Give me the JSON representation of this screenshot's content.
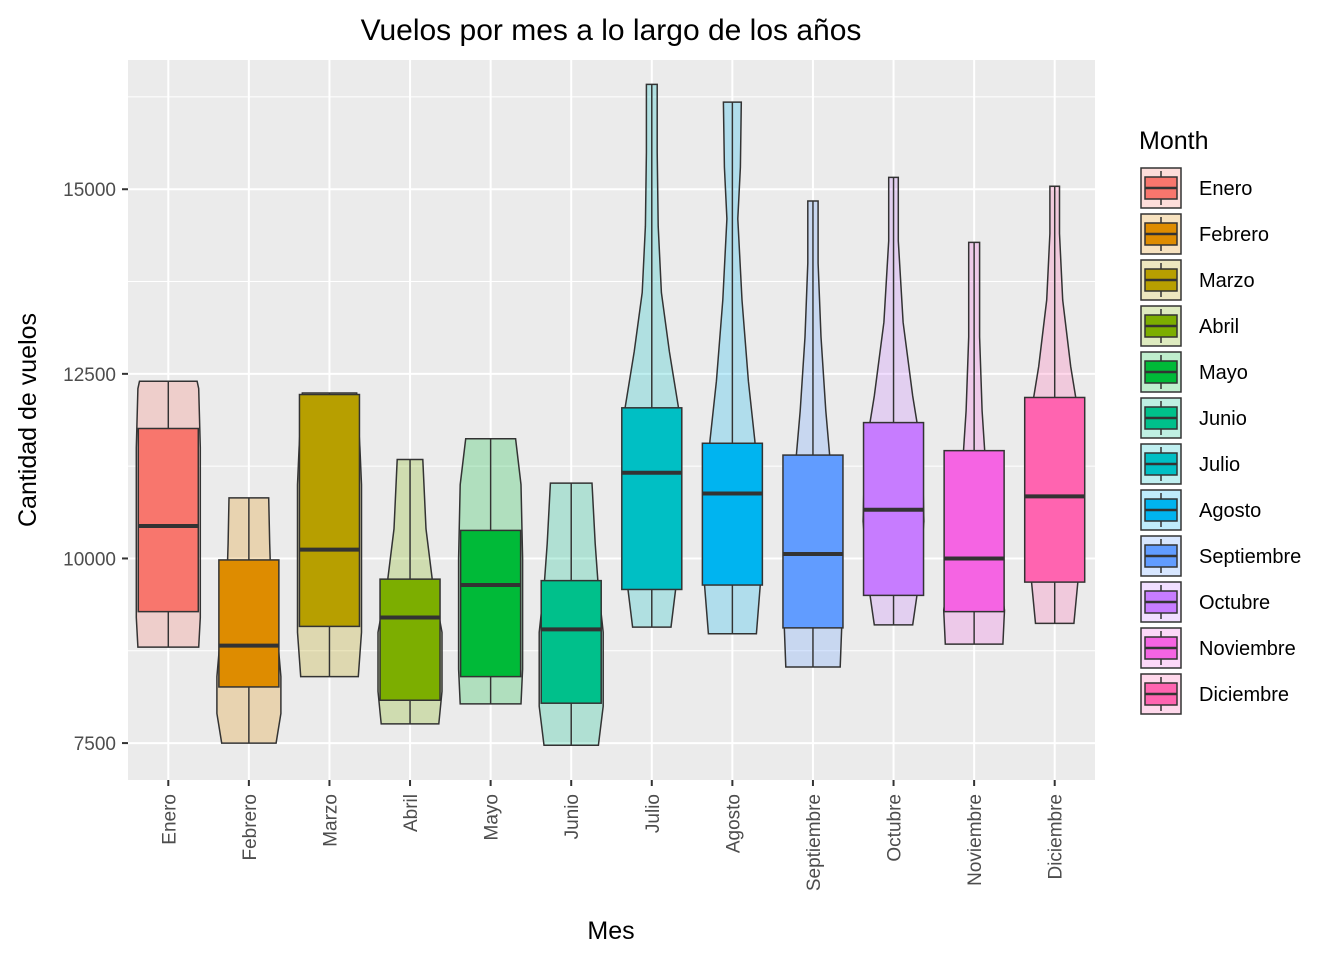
{
  "chart_data": {
    "type": "violin+boxplot",
    "title": "Vuelos por mes a lo largo de los años",
    "xlabel": "Mes",
    "ylabel": "Cantidad de vuelos",
    "ylim": [
      7000,
      16750
    ],
    "yticks": [
      7500,
      10000,
      12500,
      15000
    ],
    "grid": true,
    "legend": {
      "title": "Month",
      "position": "right"
    },
    "categories": [
      "Enero",
      "Febrero",
      "Marzo",
      "Abril",
      "Mayo",
      "Junio",
      "Julio",
      "Agosto",
      "Septiembre",
      "Octubre",
      "Noviembre",
      "Diciembre"
    ],
    "colors": [
      "#F8766D",
      "#DE8C00",
      "#B79F00",
      "#7CAE00",
      "#00BA38",
      "#00C08B",
      "#00BFC4",
      "#00B4F0",
      "#619CFF",
      "#C77CFF",
      "#F564E3",
      "#FF64B0"
    ],
    "box": [
      {
        "min": 8800,
        "q1": 9280,
        "median": 10440,
        "q3": 11760,
        "max": 12400
      },
      {
        "min": 7500,
        "q1": 8260,
        "median": 8820,
        "q3": 9980,
        "max": 10820
      },
      {
        "min": 8400,
        "q1": 9080,
        "median": 10120,
        "q3": 12220,
        "max": 12240
      },
      {
        "min": 7760,
        "q1": 8080,
        "median": 9200,
        "q3": 9720,
        "max": 11340
      },
      {
        "min": 8030,
        "q1": 8400,
        "median": 9640,
        "q3": 10380,
        "max": 11620
      },
      {
        "min": 7470,
        "q1": 8040,
        "median": 9040,
        "q3": 9700,
        "max": 11020
      },
      {
        "min": 9070,
        "q1": 9580,
        "median": 11160,
        "q3": 12040,
        "max": 16420
      },
      {
        "min": 8980,
        "q1": 9640,
        "median": 10880,
        "q3": 11560,
        "max": 16180
      },
      {
        "min": 8530,
        "q1": 9060,
        "median": 10060,
        "q3": 11400,
        "max": 14840
      },
      {
        "min": 9100,
        "q1": 9500,
        "median": 10660,
        "q3": 11840,
        "max": 15160
      },
      {
        "min": 8840,
        "q1": 9280,
        "median": 10000,
        "q3": 11460,
        "max": 14280
      },
      {
        "min": 9120,
        "q1": 9680,
        "median": 10840,
        "q3": 12180,
        "max": 15040
      }
    ],
    "violin_half_width": [
      [
        [
          8800,
          0.95
        ],
        [
          9200,
          1.0
        ],
        [
          10000,
          1.0
        ],
        [
          11500,
          1.0
        ],
        [
          12300,
          0.95
        ],
        [
          12400,
          0.9
        ]
      ],
      [
        [
          7500,
          0.85
        ],
        [
          7900,
          1.0
        ],
        [
          8400,
          1.0
        ],
        [
          8900,
          0.9
        ],
        [
          9500,
          0.7
        ],
        [
          10200,
          0.65
        ],
        [
          10820,
          0.62
        ]
      ],
      [
        [
          8400,
          0.9
        ],
        [
          9000,
          1.0
        ],
        [
          11000,
          1.0
        ],
        [
          11500,
          0.95
        ],
        [
          12240,
          0.85
        ]
      ],
      [
        [
          7760,
          0.9
        ],
        [
          8200,
          1.0
        ],
        [
          9000,
          1.0
        ],
        [
          9700,
          0.7
        ],
        [
          10400,
          0.5
        ],
        [
          11340,
          0.4
        ]
      ],
      [
        [
          8030,
          0.95
        ],
        [
          8500,
          1.0
        ],
        [
          10000,
          1.0
        ],
        [
          11000,
          0.95
        ],
        [
          11620,
          0.78
        ]
      ],
      [
        [
          7470,
          0.85
        ],
        [
          8000,
          1.0
        ],
        [
          9000,
          1.0
        ],
        [
          9600,
          0.85
        ],
        [
          10200,
          0.75
        ],
        [
          11020,
          0.65
        ]
      ],
      [
        [
          9070,
          0.6
        ],
        [
          9600,
          0.75
        ],
        [
          10500,
          0.9
        ],
        [
          11400,
          0.9
        ],
        [
          12000,
          0.85
        ],
        [
          12800,
          0.55
        ],
        [
          13600,
          0.3
        ],
        [
          14500,
          0.2
        ],
        [
          15500,
          0.17
        ],
        [
          16420,
          0.17
        ]
      ],
      [
        [
          8980,
          0.75
        ],
        [
          9800,
          0.9
        ],
        [
          10800,
          0.85
        ],
        [
          11600,
          0.7
        ],
        [
          12400,
          0.5
        ],
        [
          13500,
          0.3
        ],
        [
          14600,
          0.17
        ],
        [
          15300,
          0.25
        ],
        [
          16180,
          0.28
        ]
      ],
      [
        [
          8530,
          0.85
        ],
        [
          9100,
          0.9
        ],
        [
          10000,
          0.8
        ],
        [
          11000,
          0.6
        ],
        [
          12000,
          0.4
        ],
        [
          13000,
          0.25
        ],
        [
          14000,
          0.16
        ],
        [
          14840,
          0.16
        ]
      ],
      [
        [
          9100,
          0.6
        ],
        [
          9700,
          0.8
        ],
        [
          10500,
          0.95
        ],
        [
          11400,
          0.9
        ],
        [
          12200,
          0.6
        ],
        [
          13200,
          0.3
        ],
        [
          14300,
          0.15
        ],
        [
          15160,
          0.15
        ]
      ],
      [
        [
          8840,
          0.9
        ],
        [
          9300,
          0.95
        ],
        [
          10000,
          0.7
        ],
        [
          11000,
          0.4
        ],
        [
          12000,
          0.25
        ],
        [
          13000,
          0.17
        ],
        [
          14280,
          0.17
        ]
      ],
      [
        [
          9120,
          0.6
        ],
        [
          9800,
          0.75
        ],
        [
          10800,
          0.9
        ],
        [
          11800,
          0.8
        ],
        [
          12600,
          0.5
        ],
        [
          13500,
          0.25
        ],
        [
          14400,
          0.15
        ],
        [
          15040,
          0.15
        ]
      ]
    ]
  }
}
